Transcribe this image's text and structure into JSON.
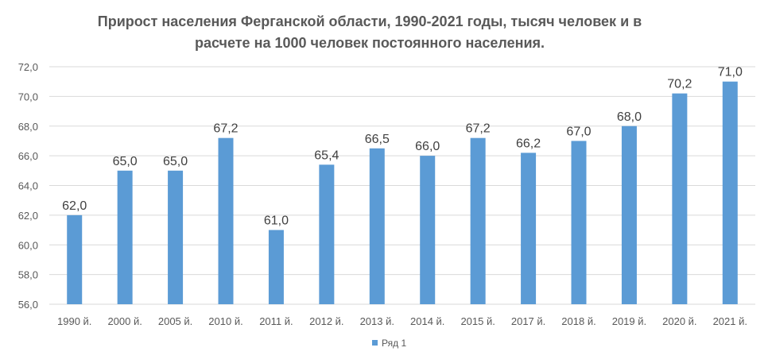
{
  "chart_data": {
    "type": "bar",
    "title_lines": [
      "Прирост населения Ферганской области, 1990-2021 годы, тысяч человек и в",
      "расчете на 1000 человек постоянного населения."
    ],
    "categories": [
      "1990 й.",
      "2000 й.",
      "2005 й.",
      "2010 й.",
      "2011 й.",
      "2012 й.",
      "2013 й.",
      "2014 й.",
      "2015 й.",
      "2017 й.",
      "2018 й.",
      "2019 й.",
      "2020 й.",
      "2021 й."
    ],
    "series": [
      {
        "name": "Ряд 1",
        "values": [
          62.0,
          65.0,
          65.0,
          67.2,
          61.0,
          65.4,
          66.5,
          66.0,
          67.2,
          66.2,
          67.0,
          68.0,
          70.2,
          71.0
        ],
        "labels": [
          "62,0",
          "65,0",
          "65,0",
          "67,2",
          "61,0",
          "65,4",
          "66,5",
          "66,0",
          "67,2",
          "66,2",
          "67,0",
          "68,0",
          "70,2",
          "71,0"
        ]
      }
    ],
    "ylim": [
      56,
      72
    ],
    "yticks": [
      56,
      58,
      60,
      62,
      64,
      66,
      68,
      70,
      72
    ],
    "ytick_labels": [
      "56,0",
      "58,0",
      "60,0",
      "62,0",
      "64,0",
      "66,0",
      "68,0",
      "70,0",
      "72,0"
    ],
    "grid": true,
    "legend": "bottom",
    "xlabel": "",
    "ylabel": "",
    "colors": {
      "bar": "#5B9BD5",
      "grid": "#D9D9D9",
      "text": "#595959"
    }
  }
}
